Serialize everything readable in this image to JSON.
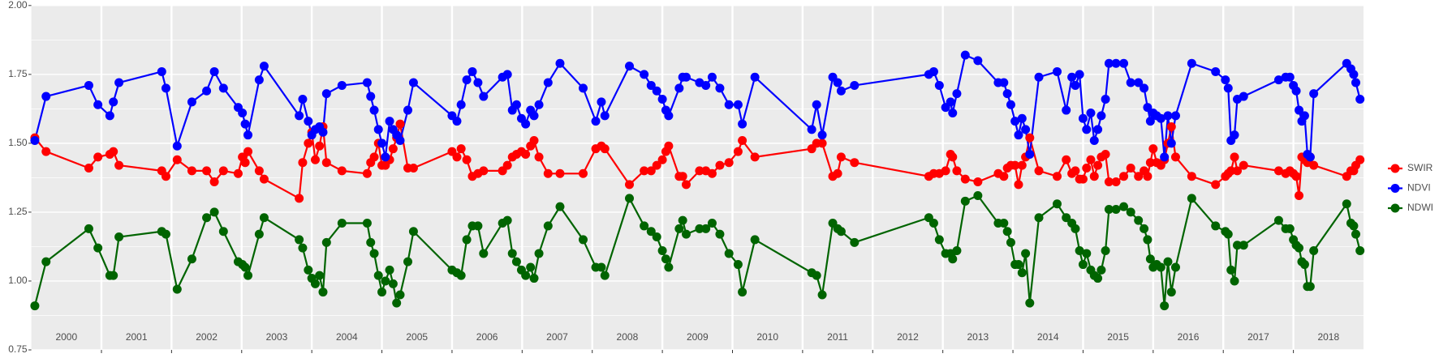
{
  "chart_data": {
    "type": "line",
    "annotations": [
      "2000",
      "2001",
      "2002",
      "2003",
      "2004",
      "2005",
      "2006",
      "2007",
      "2008",
      "2009",
      "2010",
      "2011",
      "2012",
      "2013",
      "2014",
      "2015",
      "2016",
      "2017",
      "2018"
    ],
    "xlim": [
      2000,
      2019
    ],
    "xticks": [
      2001,
      2002,
      2003,
      2004,
      2005,
      2006,
      2007,
      2008,
      2009,
      2010,
      2011,
      2012,
      2013,
      2014,
      2015,
      2016,
      2017,
      2018
    ],
    "ylim": [
      0.75,
      2.0
    ],
    "yticks": [
      {
        "value": 0.75,
        "label": "0.75"
      },
      {
        "value": 1.0,
        "label": "1.00"
      },
      1.25,
      {
        "value": 1.5,
        "label": "1.50"
      },
      1.75,
      {
        "value": 2.0,
        "label": "2.00"
      }
    ],
    "grid": true,
    "legend": "right",
    "x": [
      2000.05,
      2000.21,
      2000.82,
      2000.95,
      2001.12,
      2001.17,
      2001.25,
      2001.86,
      2001.92,
      2002.08,
      2002.29,
      2002.5,
      2002.61,
      2002.74,
      2002.95,
      2003.01,
      2003.05,
      2003.09,
      2003.25,
      2003.32,
      2003.82,
      2003.87,
      2003.95,
      2004,
      2004.05,
      2004.11,
      2004.16,
      2004.21,
      2004.43,
      2004.79,
      2004.84,
      2004.89,
      2004.95,
      2005,
      2005.05,
      2005.11,
      2005.16,
      2005.21,
      2005.26,
      2005.37,
      2005.45,
      2006,
      2006.07,
      2006.13,
      2006.21,
      2006.29,
      2006.37,
      2006.45,
      2006.72,
      2006.79,
      2006.86,
      2006.92,
      2006.99,
      2007.05,
      2007.12,
      2007.17,
      2007.24,
      2007.37,
      2007.54,
      2007.87,
      2008.05,
      2008.13,
      2008.18,
      2008.53,
      2008.74,
      2008.84,
      2008.92,
      2009,
      2009.05,
      2009.09,
      2009.24,
      2009.29,
      2009.34,
      2009.53,
      2009.62,
      2009.71,
      2009.82,
      2009.95,
      2010.08,
      2010.14,
      2010.32,
      2011.13,
      2011.2,
      2011.28,
      2011.43,
      2011.5,
      2011.55,
      2011.74,
      2012.8,
      2012.87,
      2012.95,
      2013.04,
      2013.11,
      2013.14,
      2013.2,
      2013.32,
      2013.5,
      2013.79,
      2013.87,
      2013.92,
      2013.97,
      2014.03,
      2014.08,
      2014.13,
      2014.18,
      2014.24,
      2014.37,
      2014.63,
      2014.76,
      2014.84,
      2014.89,
      2014.95,
      2015,
      2015.05,
      2015.11,
      2015.16,
      2015.21,
      2015.26,
      2015.32,
      2015.37,
      2015.47,
      2015.58,
      2015.68,
      2015.79,
      2015.87,
      2015.92,
      2015.96,
      2016,
      2016.05,
      2016.11,
      2016.16,
      2016.21,
      2016.26,
      2016.32,
      2016.55,
      2016.89,
      2017.03,
      2017.07,
      2017.11,
      2017.16,
      2017.2,
      2017.29,
      2017.79,
      2017.89,
      2017.95,
      2018,
      2018.04,
      2018.08,
      2018.12,
      2018.16,
      2018.2,
      2018.24,
      2018.29,
      2018.76,
      2018.82,
      2018.86,
      2018.89,
      2018.95
    ],
    "series": [
      {
        "name": "SWIR",
        "color": "#ff0000",
        "values": [
          1.52,
          1.47,
          1.41,
          1.45,
          1.46,
          1.47,
          1.42,
          1.4,
          1.38,
          1.44,
          1.4,
          1.4,
          1.36,
          1.4,
          1.39,
          1.45,
          1.43,
          1.47,
          1.4,
          1.37,
          1.3,
          1.43,
          1.5,
          1.54,
          1.44,
          1.49,
          1.56,
          1.43,
          1.4,
          1.39,
          1.43,
          1.45,
          1.5,
          1.42,
          1.42,
          1.44,
          1.48,
          1.52,
          1.57,
          1.41,
          1.41,
          1.47,
          1.45,
          1.48,
          1.44,
          1.38,
          1.39,
          1.4,
          1.4,
          1.42,
          1.45,
          1.46,
          1.47,
          1.46,
          1.49,
          1.51,
          1.45,
          1.39,
          1.39,
          1.39,
          1.48,
          1.49,
          1.48,
          1.35,
          1.4,
          1.4,
          1.42,
          1.44,
          1.47,
          1.49,
          1.38,
          1.38,
          1.35,
          1.4,
          1.4,
          1.39,
          1.42,
          1.43,
          1.47,
          1.51,
          1.45,
          1.48,
          1.5,
          1.5,
          1.38,
          1.39,
          1.45,
          1.43,
          1.38,
          1.39,
          1.39,
          1.4,
          1.46,
          1.45,
          1.4,
          1.37,
          1.36,
          1.39,
          1.38,
          1.41,
          1.42,
          1.42,
          1.35,
          1.42,
          1.45,
          1.52,
          1.4,
          1.38,
          1.44,
          1.39,
          1.4,
          1.37,
          1.37,
          1.41,
          1.44,
          1.38,
          1.42,
          1.45,
          1.46,
          1.36,
          1.36,
          1.38,
          1.41,
          1.38,
          1.4,
          1.38,
          1.43,
          1.48,
          1.43,
          1.42,
          1.44,
          1.5,
          1.56,
          1.45,
          1.38,
          1.35,
          1.38,
          1.39,
          1.4,
          1.45,
          1.4,
          1.42,
          1.4,
          1.39,
          1.4,
          1.39,
          1.38,
          1.31,
          1.45,
          1.44,
          1.43,
          1.45,
          1.42,
          1.38,
          1.4,
          1.4,
          1.42,
          1.44
        ]
      },
      {
        "name": "NDVI",
        "color": "#0000ff",
        "values": [
          1.51,
          1.67,
          1.71,
          1.64,
          1.6,
          1.65,
          1.72,
          1.76,
          1.7,
          1.49,
          1.65,
          1.69,
          1.76,
          1.7,
          1.63,
          1.61,
          1.57,
          1.53,
          1.73,
          1.78,
          1.6,
          1.66,
          1.58,
          1.53,
          1.55,
          1.56,
          1.54,
          1.68,
          1.71,
          1.72,
          1.67,
          1.62,
          1.55,
          1.5,
          1.45,
          1.58,
          1.55,
          1.53,
          1.51,
          1.62,
          1.72,
          1.6,
          1.58,
          1.64,
          1.73,
          1.76,
          1.72,
          1.67,
          1.74,
          1.75,
          1.62,
          1.64,
          1.59,
          1.57,
          1.62,
          1.6,
          1.64,
          1.72,
          1.79,
          1.7,
          1.58,
          1.65,
          1.6,
          1.78,
          1.75,
          1.71,
          1.69,
          1.66,
          1.62,
          1.6,
          1.7,
          1.74,
          1.74,
          1.72,
          1.71,
          1.74,
          1.7,
          1.64,
          1.64,
          1.57,
          1.74,
          1.55,
          1.64,
          1.53,
          1.74,
          1.72,
          1.69,
          1.71,
          1.75,
          1.76,
          1.71,
          1.63,
          1.65,
          1.61,
          1.68,
          1.82,
          1.8,
          1.72,
          1.72,
          1.68,
          1.64,
          1.58,
          1.53,
          1.59,
          1.55,
          1.46,
          1.74,
          1.76,
          1.62,
          1.74,
          1.71,
          1.75,
          1.59,
          1.55,
          1.61,
          1.51,
          1.55,
          1.6,
          1.66,
          1.79,
          1.79,
          1.79,
          1.72,
          1.72,
          1.7,
          1.63,
          1.58,
          1.61,
          1.6,
          1.59,
          1.45,
          1.6,
          1.5,
          1.6,
          1.79,
          1.76,
          1.73,
          1.7,
          1.51,
          1.53,
          1.66,
          1.67,
          1.73,
          1.74,
          1.74,
          1.71,
          1.69,
          1.62,
          1.58,
          1.6,
          1.46,
          1.45,
          1.68,
          1.79,
          1.77,
          1.75,
          1.72,
          1.66
        ]
      },
      {
        "name": "NDWI",
        "color": "#006400",
        "values": [
          0.91,
          1.07,
          1.19,
          1.12,
          1.02,
          1.02,
          1.16,
          1.18,
          1.17,
          0.97,
          1.08,
          1.23,
          1.25,
          1.18,
          1.07,
          1.06,
          1.05,
          1.02,
          1.17,
          1.23,
          1.15,
          1.12,
          1.04,
          1.01,
          0.99,
          1.02,
          0.96,
          1.14,
          1.21,
          1.21,
          1.14,
          1.1,
          1.02,
          0.96,
          1.0,
          1.04,
          0.99,
          0.92,
          0.95,
          1.07,
          1.18,
          1.04,
          1.03,
          1.02,
          1.15,
          1.2,
          1.2,
          1.1,
          1.21,
          1.22,
          1.1,
          1.07,
          1.04,
          1.02,
          1.05,
          1.01,
          1.1,
          1.2,
          1.27,
          1.15,
          1.05,
          1.05,
          1.02,
          1.3,
          1.2,
          1.18,
          1.16,
          1.11,
          1.08,
          1.05,
          1.19,
          1.22,
          1.17,
          1.19,
          1.19,
          1.21,
          1.17,
          1.1,
          1.06,
          0.96,
          1.15,
          1.03,
          1.02,
          0.95,
          1.21,
          1.19,
          1.18,
          1.14,
          1.23,
          1.21,
          1.15,
          1.1,
          1.1,
          1.08,
          1.11,
          1.29,
          1.31,
          1.21,
          1.21,
          1.18,
          1.14,
          1.06,
          1.06,
          1.03,
          1.1,
          0.92,
          1.23,
          1.28,
          1.23,
          1.21,
          1.19,
          1.11,
          1.06,
          1.1,
          1.04,
          1.02,
          1.01,
          1.04,
          1.11,
          1.26,
          1.26,
          1.27,
          1.25,
          1.22,
          1.19,
          1.15,
          1.08,
          1.05,
          1.06,
          1.05,
          0.91,
          1.07,
          0.96,
          1.05,
          1.3,
          1.2,
          1.18,
          1.17,
          1.04,
          1.0,
          1.13,
          1.13,
          1.22,
          1.19,
          1.19,
          1.15,
          1.13,
          1.12,
          1.07,
          1.06,
          0.98,
          0.98,
          1.11,
          1.28,
          1.21,
          1.2,
          1.17,
          1.11
        ]
      }
    ]
  }
}
